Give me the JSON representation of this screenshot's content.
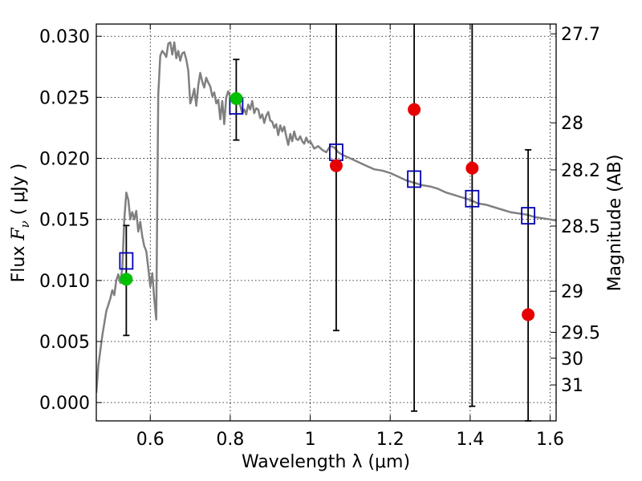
{
  "chart_data": {
    "type": "scatter",
    "xlabel": "Wavelength  λ (μm)",
    "ylabel": "Flux  F_ν  ( μJy )",
    "ylabel_parts": {
      "prefix": "Flux  ",
      "symbol": "F",
      "subscript": "ν",
      "suffix": "  ( μJy )"
    },
    "y2label": "Magnitude (AB)",
    "xlim": [
      0.465,
      1.615
    ],
    "ylim": [
      -0.0015,
      0.031
    ],
    "grid": true,
    "x_ticks": [
      {
        "value": 0.6,
        "label": "0.6"
      },
      {
        "value": 0.8,
        "label": "0.8"
      },
      {
        "value": 1.0,
        "label": "1"
      },
      {
        "value": 1.2,
        "label": "1.2"
      },
      {
        "value": 1.4,
        "label": "1.4"
      },
      {
        "value": 1.6,
        "label": "1.6"
      }
    ],
    "y_ticks": [
      {
        "value": 0.0,
        "label": "0.000"
      },
      {
        "value": 0.005,
        "label": "0.005"
      },
      {
        "value": 0.01,
        "label": "0.010"
      },
      {
        "value": 0.015,
        "label": "0.015"
      },
      {
        "value": 0.02,
        "label": "0.020"
      },
      {
        "value": 0.025,
        "label": "0.025"
      },
      {
        "value": 0.03,
        "label": "0.030"
      }
    ],
    "y2_ticks": [
      {
        "value": 27.7,
        "label": "27.7"
      },
      {
        "value": 28.0,
        "label": "28"
      },
      {
        "value": 28.2,
        "label": "28.2"
      },
      {
        "value": 28.5,
        "label": "28.5"
      },
      {
        "value": 29.0,
        "label": "29"
      },
      {
        "value": 29.5,
        "label": "29.5"
      },
      {
        "value": 30.0,
        "label": "30"
      },
      {
        "value": 31.0,
        "label": "31"
      }
    ],
    "colors": {
      "model": "#808080",
      "synthetic": "#0000b4",
      "observed": "#00c000",
      "non_detection": "#e60000",
      "errorbar": "#000000"
    },
    "model_sed": {
      "x": [
        0.465,
        0.47,
        0.48,
        0.49,
        0.5,
        0.505,
        0.51,
        0.515,
        0.52,
        0.525,
        0.53,
        0.535,
        0.54,
        0.545,
        0.55,
        0.555,
        0.56,
        0.565,
        0.57,
        0.575,
        0.58,
        0.585,
        0.59,
        0.595,
        0.6,
        0.605,
        0.61,
        0.615,
        0.62,
        0.625,
        0.63,
        0.635,
        0.64,
        0.645,
        0.65,
        0.655,
        0.66,
        0.665,
        0.67,
        0.675,
        0.68,
        0.685,
        0.69,
        0.695,
        0.7,
        0.705,
        0.71,
        0.715,
        0.72,
        0.725,
        0.73,
        0.735,
        0.74,
        0.745,
        0.75,
        0.755,
        0.76,
        0.765,
        0.77,
        0.775,
        0.78,
        0.785,
        0.79,
        0.795,
        0.8,
        0.805,
        0.81,
        0.815,
        0.82,
        0.825,
        0.83,
        0.835,
        0.84,
        0.845,
        0.85,
        0.855,
        0.86,
        0.865,
        0.87,
        0.875,
        0.88,
        0.885,
        0.89,
        0.895,
        0.9,
        0.905,
        0.91,
        0.915,
        0.92,
        0.925,
        0.93,
        0.935,
        0.94,
        0.945,
        0.95,
        0.955,
        0.96,
        0.965,
        0.97,
        0.975,
        0.98,
        0.985,
        0.99,
        0.995,
        1.0,
        1.01,
        1.02,
        1.03,
        1.04,
        1.05,
        1.06,
        1.07,
        1.08,
        1.1,
        1.12,
        1.14,
        1.16,
        1.18,
        1.2,
        1.22,
        1.24,
        1.26,
        1.28,
        1.3,
        1.32,
        1.34,
        1.36,
        1.38,
        1.4,
        1.42,
        1.44,
        1.46,
        1.48,
        1.5,
        1.52,
        1.54,
        1.56,
        1.58,
        1.6,
        1.615
      ],
      "y": [
        0.0008,
        0.003,
        0.0055,
        0.0075,
        0.0085,
        0.0092,
        0.0088,
        0.01,
        0.0105,
        0.0098,
        0.011,
        0.015,
        0.0172,
        0.0166,
        0.015,
        0.0156,
        0.015,
        0.0157,
        0.014,
        0.0148,
        0.0136,
        0.0128,
        0.0124,
        0.011,
        0.0095,
        0.0106,
        0.0085,
        0.0068,
        0.0252,
        0.0284,
        0.0288,
        0.0286,
        0.0283,
        0.0294,
        0.0295,
        0.0285,
        0.0295,
        0.0282,
        0.0288,
        0.028,
        0.0286,
        0.0287,
        0.0281,
        0.0272,
        0.0245,
        0.025,
        0.0257,
        0.0243,
        0.026,
        0.027,
        0.0263,
        0.0258,
        0.0266,
        0.0262,
        0.0259,
        0.0251,
        0.0254,
        0.0245,
        0.0248,
        0.0232,
        0.0247,
        0.0228,
        0.025,
        0.0255,
        0.025,
        0.0249,
        0.0248,
        0.0246,
        0.025,
        0.0243,
        0.0237,
        0.024,
        0.0236,
        0.0244,
        0.024,
        0.0247,
        0.0237,
        0.0241,
        0.024,
        0.0233,
        0.0236,
        0.0229,
        0.0235,
        0.0238,
        0.0231,
        0.023,
        0.0225,
        0.0228,
        0.0219,
        0.0227,
        0.0222,
        0.0226,
        0.0218,
        0.0211,
        0.022,
        0.0214,
        0.0222,
        0.0216,
        0.0215,
        0.0218,
        0.0214,
        0.0212,
        0.0217,
        0.0213,
        0.0214,
        0.0208,
        0.021,
        0.0207,
        0.0205,
        0.021,
        0.0209,
        0.0205,
        0.0203,
        0.02,
        0.0197,
        0.0194,
        0.0191,
        0.019,
        0.0188,
        0.0185,
        0.0182,
        0.018,
        0.0178,
        0.0177,
        0.0175,
        0.0172,
        0.017,
        0.0168,
        0.0166,
        0.0163,
        0.0162,
        0.016,
        0.0158,
        0.0156,
        0.0155,
        0.0154,
        0.0152,
        0.0151,
        0.015,
        0.0149
      ]
    },
    "synthetic_photometry": {
      "x": [
        0.54,
        0.815,
        1.065,
        1.26,
        1.405,
        1.545
      ],
      "y": [
        0.0116,
        0.0243,
        0.0205,
        0.0183,
        0.0167,
        0.0153
      ]
    },
    "observed_photometry": {
      "x": [
        0.54,
        0.815
      ],
      "y": [
        0.0101,
        0.0249
      ],
      "yerr_low": [
        0.0055,
        0.0215
      ],
      "yerr_high": [
        0.0145,
        0.0281
      ]
    },
    "non_detections": {
      "x": [
        1.065,
        1.26,
        1.405,
        1.545
      ],
      "y": [
        0.0194,
        0.024,
        0.0192,
        0.0072
      ],
      "yerr_low": [
        0.0059,
        -0.0007,
        -0.0003,
        -0.0015
      ],
      "yerr_high": [
        0.031,
        0.031,
        0.031,
        0.0207
      ]
    }
  }
}
